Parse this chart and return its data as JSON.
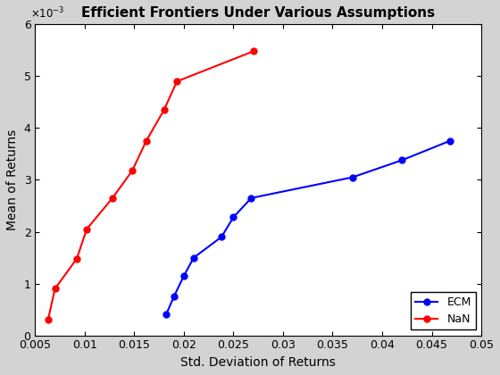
{
  "title": "Efficient Frontiers Under Various Assumptions",
  "xlabel": "Std. Deviation of Returns",
  "ylabel": "Mean of Returns",
  "ecm_x": [
    0.0182,
    0.019,
    0.02,
    0.021,
    0.0238,
    0.025,
    0.0268,
    0.037,
    0.042,
    0.0468
  ],
  "ecm_y": [
    0.0004,
    0.00075,
    0.00115,
    0.0015,
    0.0019,
    0.00228,
    0.00265,
    0.00305,
    0.00338,
    0.00375
  ],
  "nan_x": [
    0.0063,
    0.007,
    0.0092,
    0.0102,
    0.0128,
    0.0148,
    0.0162,
    0.018,
    0.0193,
    0.027
  ],
  "nan_y": [
    0.0003,
    0.0009,
    0.00148,
    0.00205,
    0.00265,
    0.00318,
    0.00375,
    0.00435,
    0.0049,
    0.00548
  ],
  "ecm_color": "#0000ff",
  "nan_color": "#ff0000",
  "xlim": [
    0.005,
    0.05
  ],
  "ylim": [
    0.0,
    0.006
  ],
  "bg_color": "#d3d3d3",
  "axes_bg_color": "#ffffff",
  "yticks": [
    0,
    0.001,
    0.002,
    0.003,
    0.004,
    0.005,
    0.006
  ],
  "xticks": [
    0.005,
    0.01,
    0.015,
    0.02,
    0.025,
    0.03,
    0.035,
    0.04,
    0.045,
    0.05
  ],
  "title_fontsize": 11,
  "label_fontsize": 10,
  "tick_fontsize": 9,
  "legend_fontsize": 9,
  "marker_size": 5,
  "line_width": 1.5
}
